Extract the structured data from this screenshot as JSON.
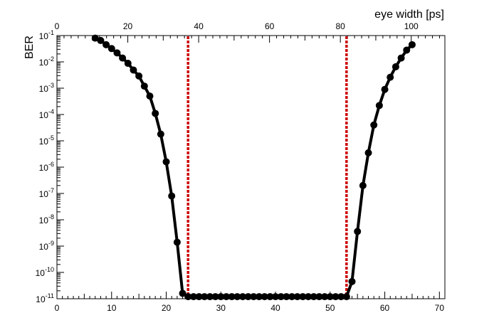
{
  "chart_data": {
    "type": "scatter",
    "title": "",
    "xlabel": "",
    "ylabel": "BER",
    "top_axis_label": "eye width [ps]",
    "xlim": [
      0,
      71
    ],
    "ylim": [
      1e-11,
      0.1
    ],
    "yscale": "log",
    "top_axis_ticks": [
      "0",
      "20",
      "40",
      "60",
      "80",
      "100"
    ],
    "x_ticks": [
      "0",
      "10",
      "20",
      "30",
      "40",
      "50",
      "60",
      "70"
    ],
    "y_ticks": [
      {
        "base": "10",
        "exp": "-1"
      },
      {
        "base": "10",
        "exp": "-2"
      },
      {
        "base": "10",
        "exp": "-3"
      },
      {
        "base": "10",
        "exp": "-4"
      },
      {
        "base": "10",
        "exp": "-5"
      },
      {
        "base": "10",
        "exp": "-6"
      },
      {
        "base": "10",
        "exp": "-7"
      },
      {
        "base": "10",
        "exp": "-8"
      },
      {
        "base": "10",
        "exp": "-9"
      },
      {
        "base": "10",
        "exp": "-10"
      },
      {
        "base": "10",
        "exp": "-11"
      }
    ],
    "grid": false,
    "legend": "none",
    "series": [
      {
        "color": "#000000",
        "x": [
          7,
          8,
          9,
          10,
          11,
          12,
          13,
          14,
          15,
          16,
          17,
          18,
          19,
          20,
          21,
          22,
          23,
          24,
          25,
          26,
          27,
          28,
          29,
          30,
          31,
          32,
          33,
          34,
          35,
          36,
          37,
          38,
          39,
          40,
          41,
          42,
          43,
          44,
          45,
          46,
          47,
          48,
          49,
          50,
          51,
          52,
          53,
          54,
          55,
          56,
          57,
          58,
          59,
          60,
          61,
          62,
          63,
          64,
          65
        ],
        "y": [
          0.08,
          0.065,
          0.045,
          0.032,
          0.022,
          0.014,
          0.0088,
          0.0049,
          0.0029,
          0.0012,
          0.0005,
          0.00011,
          1.8e-05,
          1.6e-06,
          8e-08,
          1.4e-09,
          1.6e-11,
          1.2e-11,
          1.2e-11,
          1.2e-11,
          1.2e-11,
          1.2e-11,
          1.2e-11,
          1.2e-11,
          1.2e-11,
          1.2e-11,
          1.2e-11,
          1.2e-11,
          1.2e-11,
          1.2e-11,
          1.2e-11,
          1.2e-11,
          1.2e-11,
          1.2e-11,
          1.2e-11,
          1.2e-11,
          1.2e-11,
          1.2e-11,
          1.2e-11,
          1.2e-11,
          1.2e-11,
          1.2e-11,
          1.2e-11,
          1.2e-11,
          1.2e-11,
          1.2e-11,
          1.2e-11,
          4.5e-11,
          3.6e-09,
          2e-07,
          3.5e-06,
          4e-05,
          0.00022,
          0.0009,
          0.0026,
          0.0065,
          0.014,
          0.028,
          0.045
        ]
      }
    ],
    "threshold_lines": {
      "color": "#cc0000",
      "x": [
        24,
        53
      ]
    }
  }
}
